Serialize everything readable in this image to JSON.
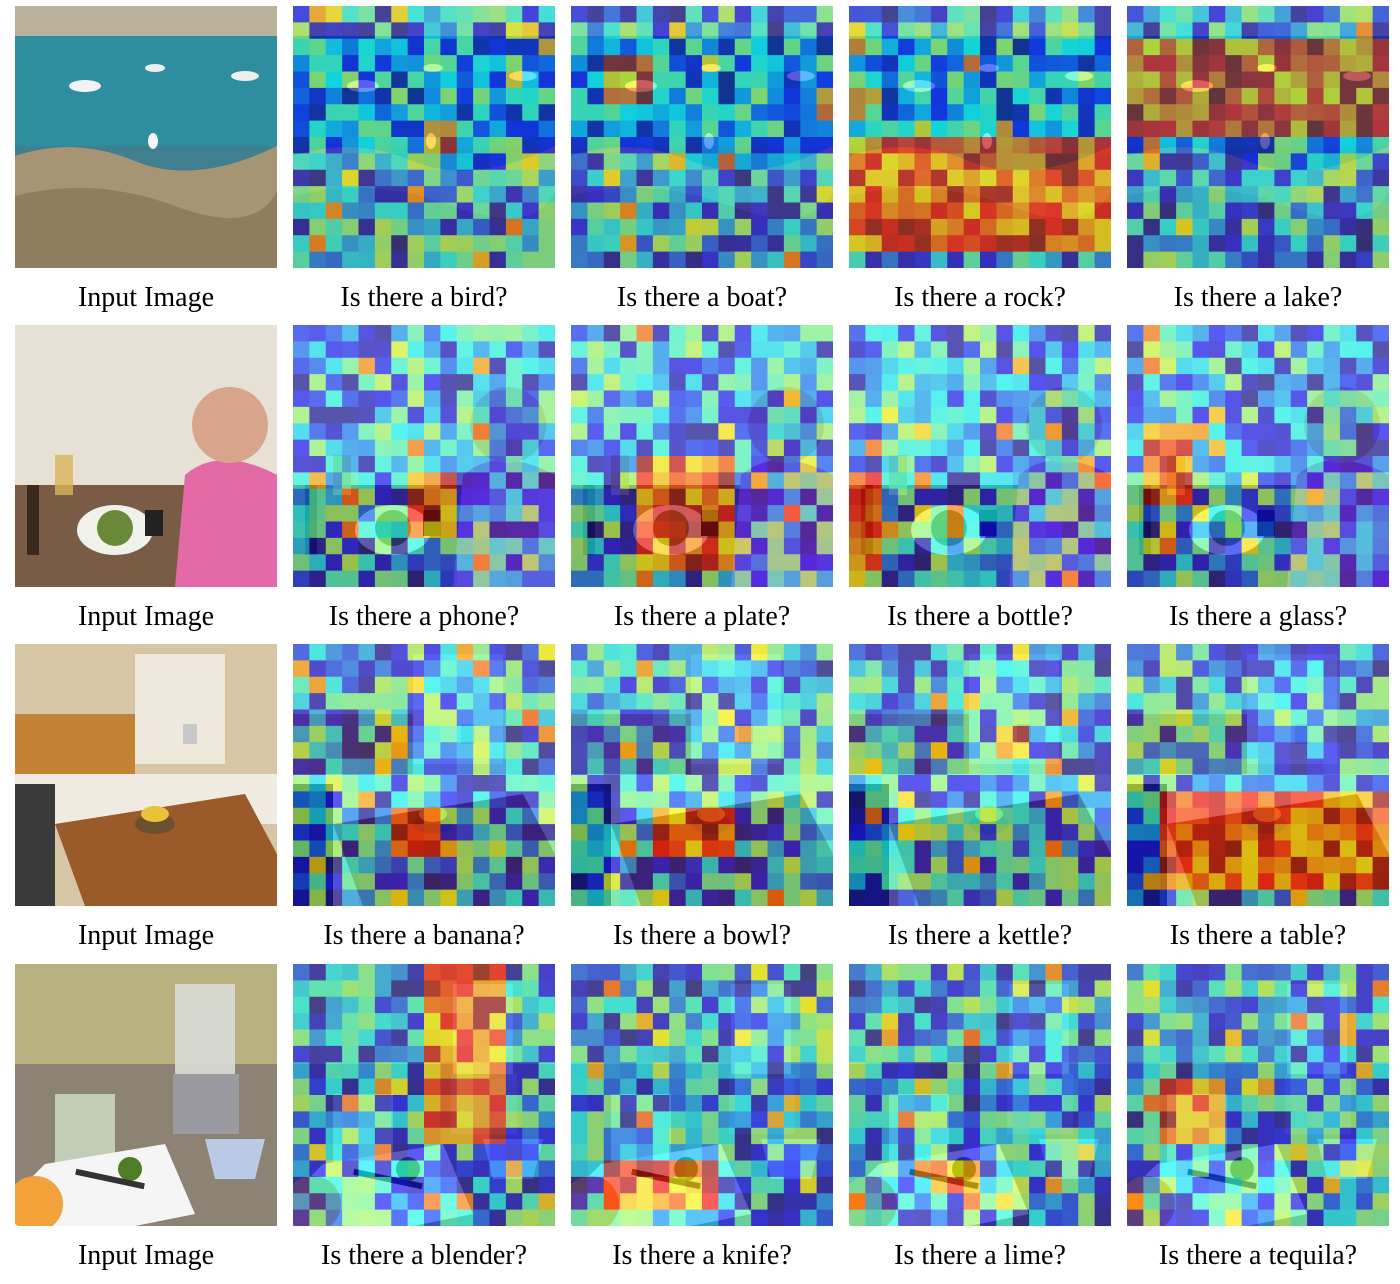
{
  "rows": [
    {
      "scene": "coast",
      "cells": [
        {
          "caption": "Input Image",
          "kind": "input",
          "scene": "coast",
          "highlight": null
        },
        {
          "caption": "Is there a bird?",
          "kind": "map",
          "scene": "coast",
          "highlight": "bird"
        },
        {
          "caption": "Is there a boat?",
          "kind": "map",
          "scene": "coast",
          "highlight": "boat"
        },
        {
          "caption": "Is there a rock?",
          "kind": "map",
          "scene": "coast",
          "highlight": "rock"
        },
        {
          "caption": "Is there a lake?",
          "kind": "map",
          "scene": "coast",
          "highlight": "lake"
        }
      ]
    },
    {
      "scene": "dining",
      "cells": [
        {
          "caption": "Input Image",
          "kind": "input",
          "scene": "dining",
          "highlight": null
        },
        {
          "caption": "Is there a phone?",
          "kind": "map",
          "scene": "dining",
          "highlight": "phone"
        },
        {
          "caption": "Is there a plate?",
          "kind": "map",
          "scene": "dining",
          "highlight": "plate"
        },
        {
          "caption": "Is there a bottle?",
          "kind": "map",
          "scene": "dining",
          "highlight": "bottle"
        },
        {
          "caption": "Is there a glass?",
          "kind": "map",
          "scene": "dining",
          "highlight": "glass"
        }
      ]
    },
    {
      "scene": "kitchen",
      "cells": [
        {
          "caption": "Input Image",
          "kind": "input",
          "scene": "kitchen",
          "highlight": null
        },
        {
          "caption": "Is there a banana?",
          "kind": "map",
          "scene": "kitchen",
          "highlight": "banana"
        },
        {
          "caption": "Is there a bowl?",
          "kind": "map",
          "scene": "kitchen",
          "highlight": "bowl"
        },
        {
          "caption": "Is there a kettle?",
          "kind": "map",
          "scene": "kitchen",
          "highlight": "kettle"
        },
        {
          "caption": "Is there a table?",
          "kind": "map",
          "scene": "kitchen",
          "highlight": "table"
        }
      ]
    },
    {
      "scene": "counter",
      "cells": [
        {
          "caption": "Input Image",
          "kind": "input",
          "scene": "counter",
          "highlight": null
        },
        {
          "caption": "Is there a blender?",
          "kind": "map",
          "scene": "counter",
          "highlight": "blender"
        },
        {
          "caption": "Is there a knife?",
          "kind": "map",
          "scene": "counter",
          "highlight": "knife"
        },
        {
          "caption": "Is there a lime?",
          "kind": "map",
          "scene": "counter",
          "highlight": "lime"
        },
        {
          "caption": "Is there a tequila?",
          "kind": "map",
          "scene": "counter",
          "highlight": "tequila"
        }
      ]
    }
  ]
}
